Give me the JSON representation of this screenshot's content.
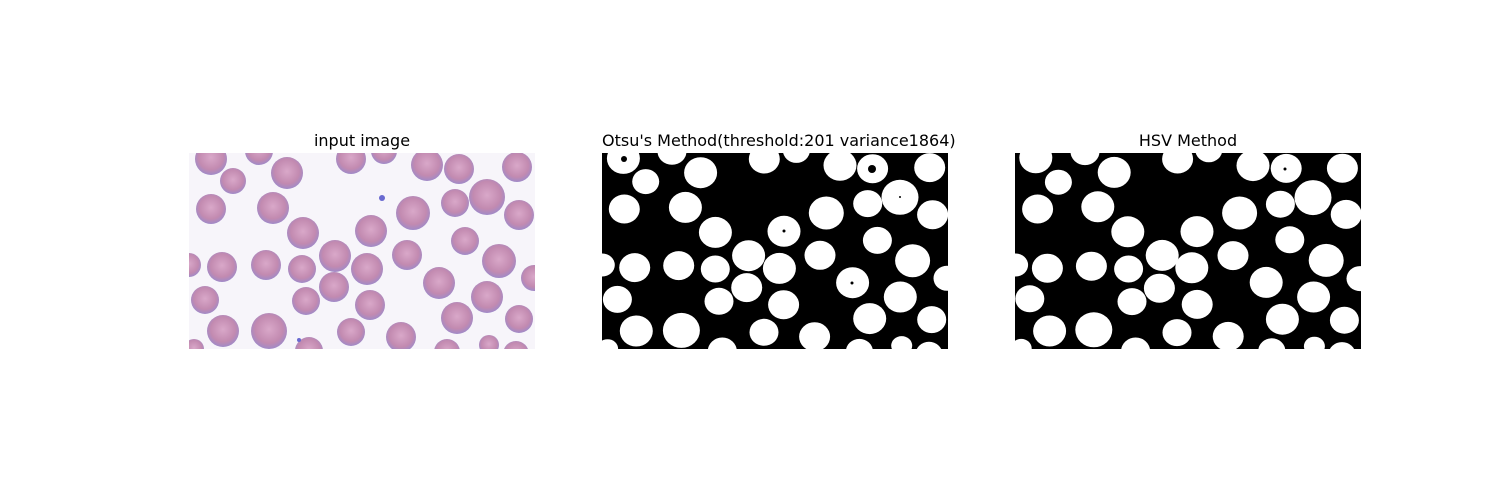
{
  "figure": {
    "panels": [
      {
        "title": "input image",
        "kind": "microscopy-rgb"
      },
      {
        "title": "Otsu's Method(threshold:201 variance1864)",
        "kind": "binary-mask"
      },
      {
        "title": "HSV Method",
        "kind": "binary-mask"
      }
    ]
  },
  "colors": {
    "background": "#f7f5fa",
    "cell_fill": "#c28ab0",
    "cell_center": "#d9a8c9",
    "cell_rim": "#a08ac8",
    "mask_on": "#ffffff",
    "mask_off": "#000000"
  }
}
